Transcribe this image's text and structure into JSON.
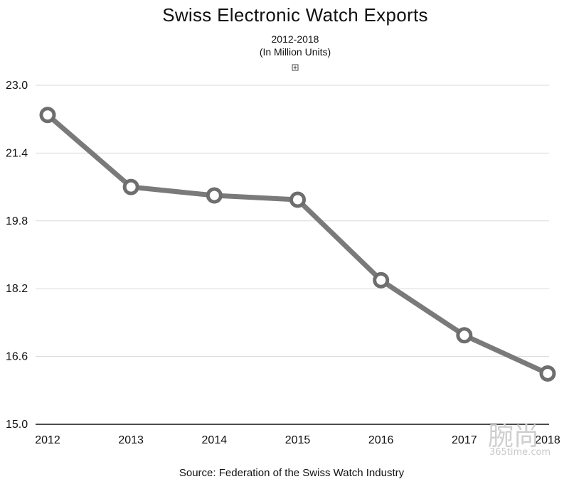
{
  "chart_data": {
    "type": "line",
    "title": "Swiss Electronic Watch Exports",
    "subtitle_line1": "2012-2018",
    "subtitle_line2": "(In Million Units)",
    "source": "Source: Federation of the Swiss Watch Industry",
    "categories": [
      "2012",
      "2013",
      "2014",
      "2015",
      "2016",
      "2017",
      "2018"
    ],
    "series": [
      {
        "values": [
          22.3,
          20.6,
          20.4,
          20.3,
          18.4,
          17.1,
          16.2
        ]
      }
    ],
    "ylim": [
      15.0,
      23.0
    ],
    "yticks": [
      "23.0",
      "21.4",
      "19.8",
      "18.2",
      "16.6",
      "15.0"
    ],
    "ytick_values": [
      23.0,
      21.4,
      19.8,
      18.2,
      16.6,
      15.0
    ],
    "grid": true,
    "colors": {
      "line": "#7a7a7a",
      "marker_fill": "#ffffff",
      "grid": "#d9d9d9"
    }
  },
  "expand_icon": "plus-square-icon",
  "watermark": {
    "cn": "腕尚",
    "en": "365time.com"
  }
}
